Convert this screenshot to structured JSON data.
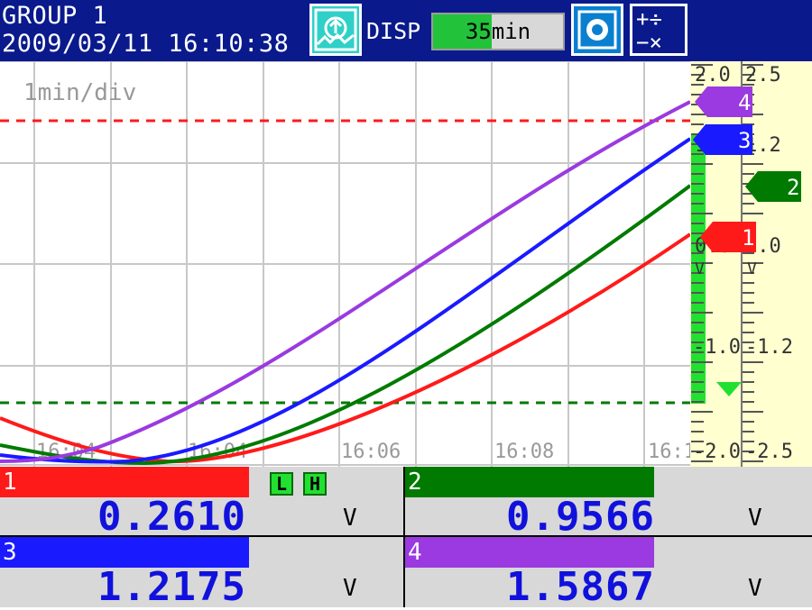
{
  "header": {
    "group_title": "GROUP 1",
    "datetime": "2009/03/11 16:10:38",
    "disp_label": "DISP",
    "rate_label": "35min",
    "rate_fill_fraction": 0.45,
    "trend_icon": "trend-screen-icon",
    "snapshot_icon": "snapshot-icon",
    "calc_icon": "calculation-icon"
  },
  "trend": {
    "time_div_label": "1min/div",
    "time_labels": [
      "16:04",
      "16:04",
      "16:06",
      "16:08",
      "16:1"
    ],
    "scale_a_labels": [
      "2.0",
      "1.0",
      "0.0",
      "-1.0",
      "-2.0"
    ],
    "scale_b_labels": [
      "2.5",
      "1.2",
      "0.0",
      "-1.2",
      "-2.5"
    ],
    "scale_units": [
      "V",
      "V"
    ]
  },
  "channels": [
    {
      "id": "1",
      "value": "0.2610",
      "unit": "V",
      "color": "#ff1a1a",
      "alarms": [
        "L",
        "H"
      ]
    },
    {
      "id": "2",
      "value": "0.9566",
      "unit": "V",
      "color": "#007a00",
      "alarms": []
    },
    {
      "id": "3",
      "value": "1.2175",
      "unit": "V",
      "color": "#1a1aff",
      "alarms": []
    },
    {
      "id": "4",
      "value": "1.5867",
      "unit": "V",
      "color": "#9a3ae0",
      "alarms": []
    }
  ],
  "colors": {
    "header_bg": "#0a1a8c",
    "grid": "#c8c8c8",
    "alarm_high_line": "#ff1a1a",
    "alarm_low_line": "#007a00",
    "scale_bg": "#ffffd0",
    "bar_green": "#22e030"
  }
}
